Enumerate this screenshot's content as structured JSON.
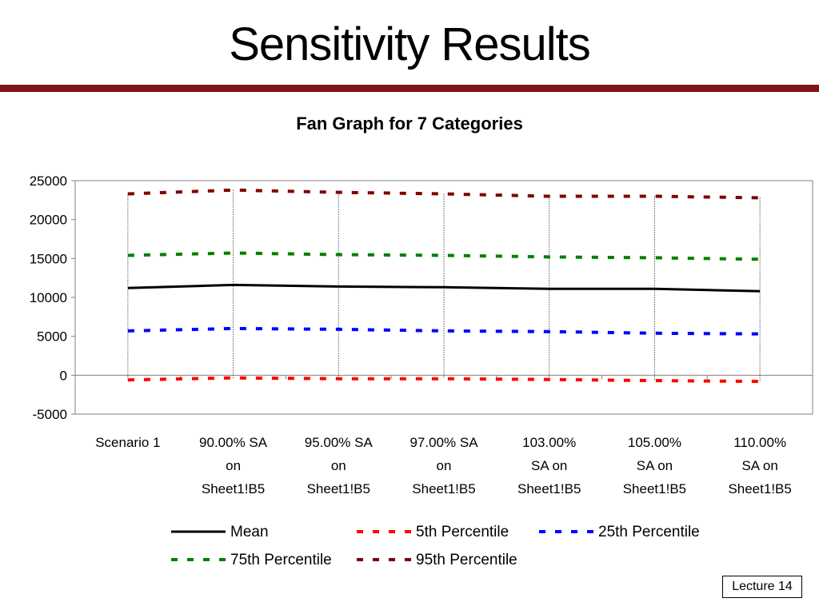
{
  "slide": {
    "title": "Sensitivity Results",
    "footer_label": "Lecture 14"
  },
  "colors": {
    "title_rule": "#7f1416",
    "mean": "#000000",
    "p5": "#ff0000",
    "p25": "#0000ff",
    "p75": "#008000",
    "p95": "#800000"
  },
  "chart_data": {
    "type": "line",
    "title": "Fan Graph for 7 Categories",
    "xlabel": "",
    "ylabel": "",
    "ylim": [
      -5000,
      25000
    ],
    "yticks": [
      25000,
      20000,
      15000,
      10000,
      5000,
      0,
      -5000
    ],
    "grid": false,
    "legend_position": "bottom",
    "categories": [
      [
        "Scenario 1"
      ],
      [
        "90.00% SA",
        "on",
        "Sheet1!B5"
      ],
      [
        "95.00% SA",
        "on",
        "Sheet1!B5"
      ],
      [
        "97.00% SA",
        "on",
        "Sheet1!B5"
      ],
      [
        "103.00%",
        "SA on",
        "Sheet1!B5"
      ],
      [
        "105.00%",
        "SA on",
        "Sheet1!B5"
      ],
      [
        "110.00%",
        "SA on",
        "Sheet1!B5"
      ]
    ],
    "series": [
      {
        "name": "Mean",
        "style": "solid",
        "color": "#000000",
        "values": [
          11200,
          11600,
          11400,
          11300,
          11100,
          11100,
          10800
        ]
      },
      {
        "name": "5th Percentile",
        "style": "dashed",
        "color": "#ff0000",
        "values": [
          -600,
          -350,
          -450,
          -450,
          -550,
          -700,
          -800
        ]
      },
      {
        "name": "25th Percentile",
        "style": "dashed",
        "color": "#0000ff",
        "values": [
          5700,
          6000,
          5900,
          5700,
          5600,
          5400,
          5300
        ]
      },
      {
        "name": "75th Percentile",
        "style": "dashed",
        "color": "#008000",
        "values": [
          15400,
          15700,
          15500,
          15400,
          15200,
          15100,
          14900
        ]
      },
      {
        "name": "95th Percentile",
        "style": "dashed",
        "color": "#800000",
        "values": [
          23300,
          23800,
          23500,
          23300,
          23000,
          23000,
          22800
        ]
      }
    ],
    "legend_order": [
      "Mean",
      "5th Percentile",
      "25th Percentile",
      "75th Percentile",
      "95th Percentile"
    ]
  }
}
